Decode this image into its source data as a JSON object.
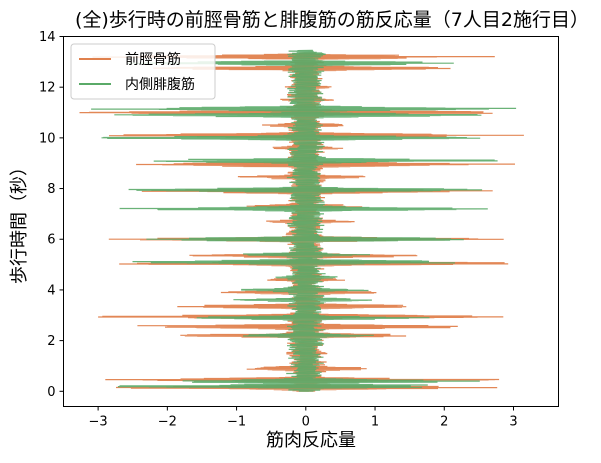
{
  "chart_data": {
    "type": "line",
    "title": "(全)歩行時の前脛骨筋と腓腹筋の筋反応量（7人目2施行目）",
    "xlabel": "筋肉反応量",
    "ylabel": "歩行時間（秒）",
    "xlim": [
      -3.5,
      3.65
    ],
    "ylim": [
      -0.6,
      14.0
    ],
    "x_ticks": [
      -3,
      -2,
      -1,
      0,
      1,
      2,
      3
    ],
    "y_ticks": [
      0,
      2,
      4,
      6,
      8,
      10,
      12,
      14
    ],
    "x_tick_labels": [
      "−3",
      "−2",
      "−1",
      "0",
      "1",
      "2",
      "3"
    ],
    "y_tick_labels": [
      "0",
      "2",
      "4",
      "6",
      "8",
      "10",
      "12",
      "14"
    ],
    "grid": false,
    "legend_position": "upper-left",
    "series": [
      {
        "name": "前脛骨筋",
        "color": "#e0814d",
        "y_range": [
          0.0,
          13.35
        ],
        "bursts": [
          {
            "y": 0.15,
            "amp": 2.8
          },
          {
            "y": 0.45,
            "amp": 3.1
          },
          {
            "y": 0.9,
            "amp": 1.2
          },
          {
            "y": 1.5,
            "amp": 0.35
          },
          {
            "y": 2.2,
            "amp": 2.1
          },
          {
            "y": 2.55,
            "amp": 3.25
          },
          {
            "y": 2.95,
            "amp": 3.3
          },
          {
            "y": 3.35,
            "amp": 2.2
          },
          {
            "y": 3.9,
            "amp": 1.3
          },
          {
            "y": 4.4,
            "amp": 0.6
          },
          {
            "y": 5.05,
            "amp": 3.25
          },
          {
            "y": 5.35,
            "amp": 2.0
          },
          {
            "y": 6.0,
            "amp": 3.2
          },
          {
            "y": 6.7,
            "amp": 0.8
          },
          {
            "y": 7.3,
            "amp": 1.0
          },
          {
            "y": 7.9,
            "amp": 3.2
          },
          {
            "y": 8.45,
            "amp": 1.2
          },
          {
            "y": 8.95,
            "amp": 3.2
          },
          {
            "y": 9.6,
            "amp": 0.6
          },
          {
            "y": 10.1,
            "amp": 3.25
          },
          {
            "y": 10.5,
            "amp": 0.7
          },
          {
            "y": 11.0,
            "amp": 3.3
          },
          {
            "y": 11.5,
            "amp": 0.5
          },
          {
            "y": 12.0,
            "amp": 0.4
          },
          {
            "y": 12.75,
            "amp": 2.3
          },
          {
            "y": 13.2,
            "amp": 3.2
          }
        ]
      },
      {
        "name": "内側腓腹筋",
        "color": "#5aaa68",
        "y_range": [
          0.0,
          13.45
        ],
        "bursts": [
          {
            "y": 0.2,
            "amp": 2.9
          },
          {
            "y": 0.4,
            "amp": 2.7
          },
          {
            "y": 1.5,
            "amp": 0.1
          },
          {
            "y": 2.2,
            "amp": 1.0
          },
          {
            "y": 2.9,
            "amp": 1.8
          },
          {
            "y": 3.6,
            "amp": 1.1
          },
          {
            "y": 4.0,
            "amp": 1.0
          },
          {
            "y": 4.5,
            "amp": 0.5
          },
          {
            "y": 5.1,
            "amp": 2.8
          },
          {
            "y": 5.4,
            "amp": 1.0
          },
          {
            "y": 6.0,
            "amp": 2.9
          },
          {
            "y": 7.2,
            "amp": 2.8
          },
          {
            "y": 7.95,
            "amp": 2.9
          },
          {
            "y": 9.1,
            "amp": 3.2
          },
          {
            "y": 10.0,
            "amp": 3.1
          },
          {
            "y": 10.9,
            "amp": 2.9
          },
          {
            "y": 11.15,
            "amp": 3.3
          },
          {
            "y": 12.1,
            "amp": 0.2
          },
          {
            "y": 12.95,
            "amp": 2.7
          },
          {
            "y": 13.3,
            "amp": 0.3
          }
        ]
      }
    ]
  }
}
